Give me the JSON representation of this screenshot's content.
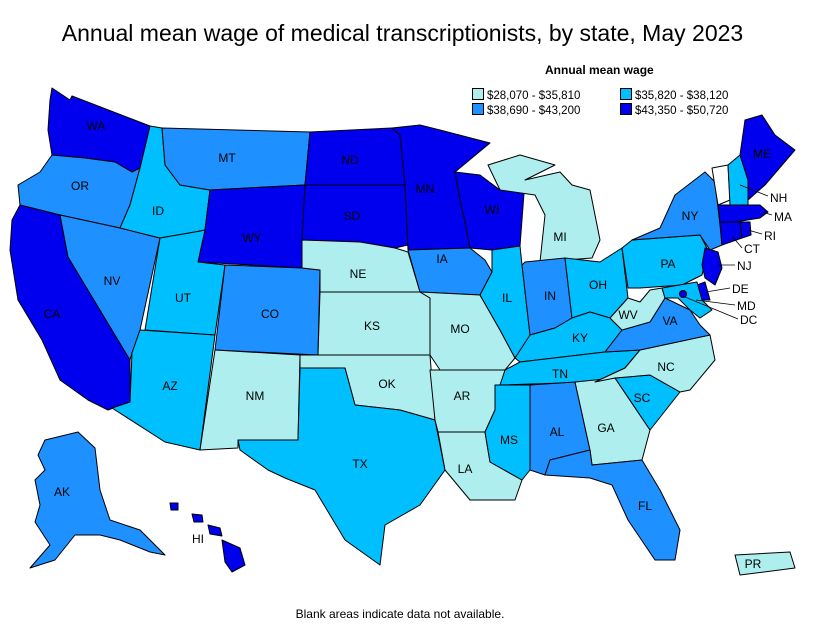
{
  "title": "Annual mean wage of medical transcriptionists, by state, May 2023",
  "legend": {
    "title": "Annual mean wage",
    "bins": [
      {
        "label": "$28,070 - $35,810",
        "color": "#aeeeee"
      },
      {
        "label": "$35,820 - $38,120",
        "color": "#00bfff"
      },
      {
        "label": "$38,690 - $43,200",
        "color": "#1e90ff"
      },
      {
        "label": "$43,350 - $50,720",
        "color": "#0000ee"
      }
    ]
  },
  "footnote": "Blank areas indicate data not available.",
  "states": {
    "WA": 3,
    "OR": 2,
    "CA": 3,
    "NV": 2,
    "ID": 1,
    "MT": 2,
    "WY": 3,
    "UT": 1,
    "CO": 2,
    "AZ": 1,
    "NM": 0,
    "ND": 3,
    "SD": 3,
    "NE": 0,
    "KS": 0,
    "OK": 0,
    "TX": 1,
    "MN": 3,
    "IA": 2,
    "MO": 0,
    "AR": 0,
    "LA": 0,
    "WI": 3,
    "IL": 1,
    "MI": 0,
    "IN": 2,
    "OH": 1,
    "KY": 1,
    "TN": 1,
    "MS": 1,
    "AL": 2,
    "GA": 0,
    "FL": 2,
    "SC": 1,
    "NC": 0,
    "VA": 2,
    "WV": 0,
    "PA": 1,
    "NY": 2,
    "ME": 3,
    "NH": 1,
    "MA": 3,
    "RI": 3,
    "CT": 3,
    "NJ": 3,
    "DE": 3,
    "MD": 1,
    "DC": 3,
    "AK": 2,
    "HI": 3,
    "PR": 0,
    "VT": null
  }
}
